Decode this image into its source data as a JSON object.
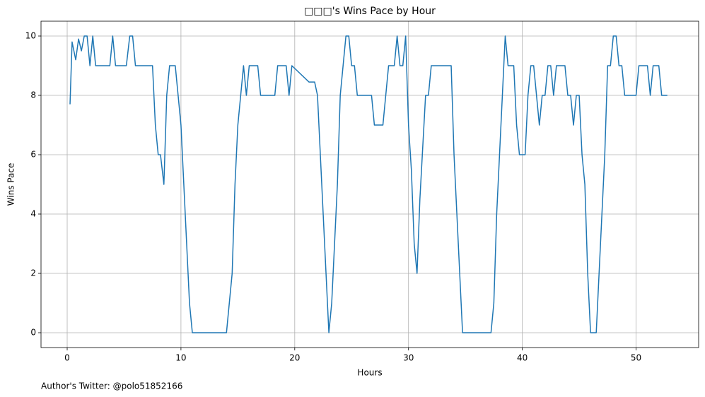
{
  "chart_data": {
    "type": "line",
    "title": "□□□'s Wins Pace by Hour",
    "xlabel": "Hours",
    "ylabel": "Wins Pace",
    "annotation": "Author's Twitter: @polo51852166",
    "color": "#1f77b4",
    "grid": true,
    "xlim": [
      -2.3,
      55.5
    ],
    "ylim": [
      -0.5,
      10.5
    ],
    "xticks": [
      0,
      10,
      20,
      30,
      40,
      50
    ],
    "yticks": [
      0,
      2,
      4,
      6,
      8,
      10
    ],
    "x": [
      0.25,
      0.43,
      0.75,
      1.0,
      1.25,
      1.5,
      1.75,
      2.0,
      2.25,
      2.5,
      3.75,
      4.0,
      4.25,
      5.2,
      5.5,
      5.75,
      6.0,
      7.5,
      7.75,
      8.0,
      8.2,
      8.5,
      8.75,
      9.0,
      9.5,
      10.0,
      10.5,
      10.75,
      11.0,
      14.0,
      14.5,
      14.75,
      15.0,
      15.5,
      15.75,
      16.0,
      16.75,
      17.0,
      18.25,
      18.5,
      19.25,
      19.5,
      19.75,
      21.25,
      21.75,
      22.0,
      22.5,
      23.0,
      23.25,
      23.75,
      24.0,
      24.5,
      24.75,
      25.0,
      25.25,
      25.5,
      26.75,
      27.0,
      27.75,
      28.25,
      28.75,
      29.0,
      29.25,
      29.5,
      29.75,
      30.0,
      30.25,
      30.5,
      30.75,
      31.0,
      31.5,
      31.75,
      32.0,
      33.75,
      34.0,
      34.5,
      34.75,
      37.25,
      37.5,
      37.75,
      38.25,
      38.5,
      38.75,
      39.25,
      39.5,
      39.75,
      40.25,
      40.5,
      40.75,
      41.0,
      41.25,
      41.5,
      41.75,
      42.0,
      42.25,
      42.5,
      42.75,
      43.0,
      43.75,
      44.0,
      44.25,
      44.5,
      44.75,
      45.0,
      45.25,
      45.5,
      45.75,
      46.0,
      46.5,
      46.75,
      47.25,
      47.5,
      47.75,
      48.0,
      48.25,
      48.5,
      48.75,
      49.0,
      50.0,
      50.25,
      51.0,
      51.25,
      51.5,
      52.0,
      52.25,
      52.75
    ],
    "values": [
      7.7,
      9.8,
      9.2,
      9.9,
      9.5,
      10,
      10,
      9,
      10,
      9,
      9,
      10,
      9,
      9,
      10,
      10,
      9,
      9,
      7,
      6,
      6,
      5,
      8,
      9,
      9,
      7,
      3,
      1,
      0,
      0,
      2,
      5,
      7,
      9,
      8,
      9,
      9,
      8,
      8,
      9,
      9,
      8,
      9,
      8.45,
      8.45,
      8,
      4,
      0,
      1,
      5,
      8,
      10,
      10,
      9,
      9,
      8,
      8,
      7,
      7,
      9,
      9,
      10,
      9,
      9,
      10,
      7,
      5.5,
      3,
      2,
      4.5,
      8,
      8,
      9,
      9,
      6,
      2,
      0,
      0,
      1,
      4,
      8,
      10,
      9,
      9,
      7,
      6,
      6,
      8,
      9,
      9,
      8,
      7,
      8,
      8,
      9,
      9,
      8,
      9,
      9,
      8,
      8,
      7,
      8,
      8,
      6,
      5,
      2,
      0,
      0,
      2,
      6,
      9,
      9,
      10,
      10,
      9,
      9,
      8,
      8,
      9,
      9,
      8,
      9,
      9,
      8,
      8
    ]
  }
}
